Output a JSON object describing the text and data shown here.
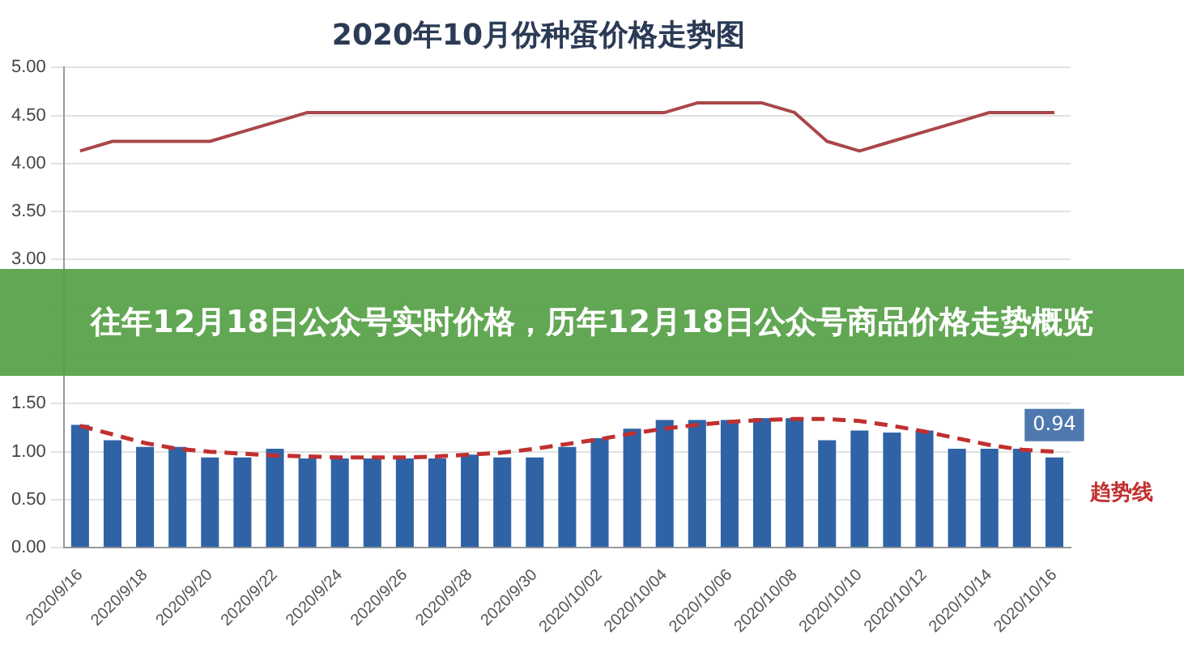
{
  "chart_data": {
    "type": "bar",
    "title": "2020年10月份种蛋价格走势图",
    "categories": [
      "2020/9/16",
      null,
      "2020/9/18",
      null,
      "2020/9/20",
      null,
      "2020/9/22",
      null,
      "2020/9/24",
      null,
      "2020/9/26",
      null,
      "2020/9/28",
      null,
      "2020/9/30",
      null,
      "2020/10/02",
      null,
      "2020/10/04",
      null,
      "2020/10/06",
      null,
      "2020/10/08",
      null,
      "2020/10/10",
      null,
      "2020/10/12",
      null,
      "2020/10/14",
      null,
      "2020/10/16"
    ],
    "series": [
      {
        "type": "bar",
        "color": "#2f63a6",
        "values": [
          1.28,
          1.12,
          1.05,
          1.05,
          0.94,
          0.94,
          1.03,
          0.93,
          0.93,
          0.93,
          0.93,
          0.93,
          0.97,
          0.94,
          0.94,
          1.05,
          1.14,
          1.24,
          1.33,
          1.33,
          1.33,
          1.35,
          1.35,
          1.12,
          1.22,
          1.2,
          1.22,
          1.03,
          1.03,
          1.03,
          0.94
        ],
        "value_labels": [
          null,
          null,
          null,
          null,
          null,
          null,
          null,
          null,
          null,
          null,
          null,
          null,
          null,
          null,
          null,
          null,
          null,
          null,
          null,
          null,
          null,
          null,
          null,
          null,
          null,
          null,
          null,
          null,
          null,
          null,
          "0.94"
        ]
      },
      {
        "type": "line",
        "color": "#a9474a",
        "values": [
          4.13,
          4.23,
          4.23,
          4.23,
          4.23,
          4.33,
          4.43,
          4.53,
          4.53,
          4.53,
          4.53,
          4.53,
          4.53,
          4.53,
          4.53,
          4.53,
          4.53,
          4.53,
          4.53,
          4.63,
          4.63,
          4.63,
          4.53,
          4.23,
          4.13,
          4.23,
          4.33,
          4.43,
          4.53,
          4.53,
          4.53
        ]
      },
      {
        "type": "line",
        "name": "趋势线",
        "color": "#c0302f",
        "line_style": "dashed",
        "values": [
          1.27,
          1.18,
          1.09,
          1.03,
          1.0,
          0.98,
          0.96,
          0.95,
          0.94,
          0.94,
          0.94,
          0.95,
          0.97,
          0.99,
          1.03,
          1.08,
          1.13,
          1.19,
          1.24,
          1.28,
          1.31,
          1.33,
          1.34,
          1.34,
          1.32,
          1.27,
          1.21,
          1.14,
          1.07,
          1.02,
          1.0
        ]
      }
    ],
    "ylim": [
      0,
      5
    ],
    "yticks": [
      {
        "value": 0,
        "label": "0.00"
      },
      {
        "value": 0.5,
        "label": "0.50"
      },
      {
        "value": 1,
        "label": "1.00"
      },
      {
        "value": 1.5,
        "label": "1.50"
      },
      {
        "value": 2,
        "label": null
      },
      {
        "value": 2.5,
        "label": null
      },
      {
        "value": 3,
        "label": "3.00"
      },
      {
        "value": 3.5,
        "label": "3.50"
      },
      {
        "value": 4,
        "label": "4.00"
      },
      {
        "value": 4.5,
        "label": "4.50"
      },
      {
        "value": 5,
        "label": "5.00"
      }
    ],
    "grid": "y",
    "legend": false,
    "marker": "none",
    "annotations": [
      "往年12月18日公众号实时价格，历年12月18日公众号商品价格走势概览"
    ]
  }
}
